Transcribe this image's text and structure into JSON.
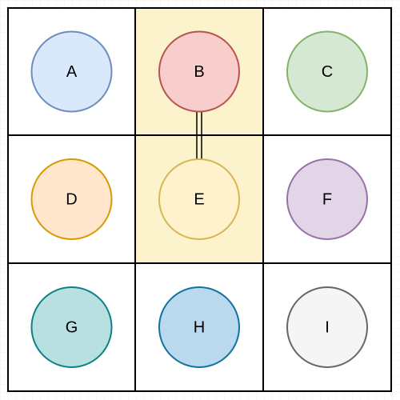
{
  "diagram": {
    "highlight_fill": "#fcf2cc",
    "grid_line_color": "#000000",
    "nodes": [
      {
        "id": "a",
        "label": "A",
        "fill": "#dae8fc",
        "stroke": "#6c8ebf",
        "highlighted": false
      },
      {
        "id": "b",
        "label": "B",
        "fill": "#f8cecc",
        "stroke": "#b85450",
        "highlighted": true
      },
      {
        "id": "c",
        "label": "C",
        "fill": "#d5e8d4",
        "stroke": "#82b366",
        "highlighted": false
      },
      {
        "id": "d",
        "label": "D",
        "fill": "#ffe6cc",
        "stroke": "#d79b00",
        "highlighted": false
      },
      {
        "id": "e",
        "label": "E",
        "fill": "#fff2cc",
        "stroke": "#d6b656",
        "highlighted": true
      },
      {
        "id": "f",
        "label": "F",
        "fill": "#e1d5e7",
        "stroke": "#9673a6",
        "highlighted": false
      },
      {
        "id": "g",
        "label": "G",
        "fill": "#b9e0e0",
        "stroke": "#0e8088",
        "highlighted": false
      },
      {
        "id": "h",
        "label": "H",
        "fill": "#bad8ee",
        "stroke": "#10739e",
        "highlighted": false
      },
      {
        "id": "i",
        "label": "I",
        "fill": "#f5f5f5",
        "stroke": "#666666",
        "highlighted": false
      }
    ],
    "edges": [
      {
        "from": "b",
        "to": "e",
        "style": "double-line",
        "color": "#000000"
      }
    ]
  }
}
